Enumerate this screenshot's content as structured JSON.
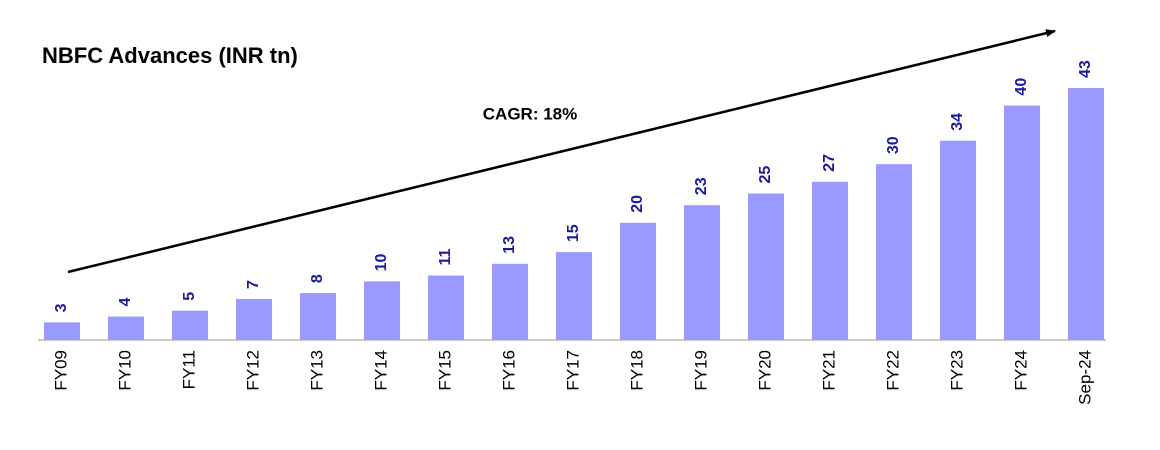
{
  "chart_data": {
    "type": "bar",
    "title": "NBFC Advances (INR tn)",
    "annotation": "CAGR: 18%",
    "categories": [
      "FY09",
      "FY10",
      "FY11",
      "FY12",
      "FY13",
      "FY14",
      "FY15",
      "FY16",
      "FY17",
      "FY18",
      "FY19",
      "FY20",
      "FY21",
      "FY22",
      "FY23",
      "FY24",
      "Sep-24"
    ],
    "values": [
      3,
      4,
      5,
      7,
      8,
      10,
      11,
      13,
      15,
      20,
      23,
      25,
      27,
      30,
      34,
      40,
      43
    ],
    "color": "#9999ff",
    "label_color": "#1a1a9c"
  }
}
